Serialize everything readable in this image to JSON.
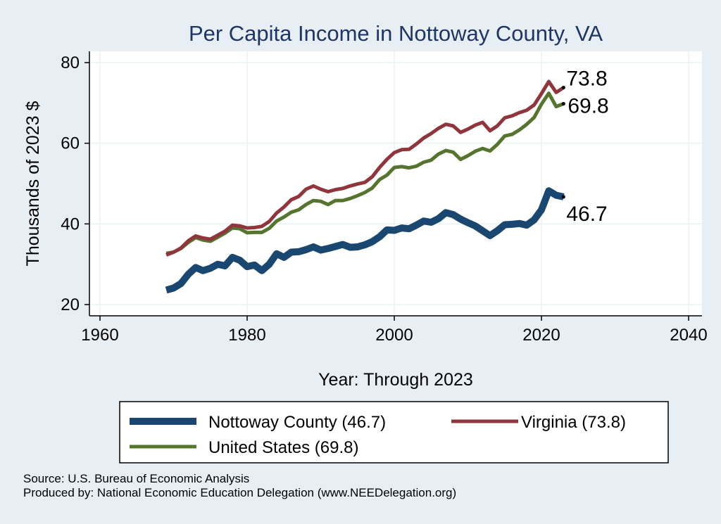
{
  "chart_data": {
    "type": "line",
    "title": "Per Capita Income in Nottoway County, VA",
    "xlabel": "Year: Through 2023",
    "ylabel": "Thousands of 2023 $",
    "xlim": [
      1960,
      2040
    ],
    "ylim": [
      20,
      80
    ],
    "xticks": [
      "1960",
      "1980",
      "2000",
      "2020",
      "2040"
    ],
    "yticks": [
      "20",
      "40",
      "60",
      "80"
    ],
    "grid": true,
    "legend_position": "bottom",
    "series": [
      {
        "name": "Nottoway County (46.7)",
        "color": "#1a476f",
        "end_label": "46.7",
        "x": [
          1969,
          1970,
          1971,
          1972,
          1973,
          1974,
          1975,
          1976,
          1977,
          1978,
          1979,
          1980,
          1981,
          1982,
          1983,
          1984,
          1985,
          1986,
          1987,
          1988,
          1989,
          1990,
          1991,
          1992,
          1993,
          1994,
          1995,
          1996,
          1997,
          1998,
          1999,
          2000,
          2001,
          2002,
          2003,
          2004,
          2005,
          2006,
          2007,
          2008,
          2009,
          2010,
          2011,
          2012,
          2013,
          2014,
          2015,
          2016,
          2017,
          2018,
          2019,
          2020,
          2021,
          2022,
          2023
        ],
        "values": [
          23.6,
          24.1,
          25.2,
          27.5,
          29.2,
          28.4,
          29.0,
          30.0,
          29.6,
          31.7,
          31.0,
          29.4,
          29.8,
          28.4,
          30.0,
          32.6,
          31.7,
          33.0,
          33.1,
          33.6,
          34.3,
          33.5,
          33.9,
          34.4,
          34.9,
          34.2,
          34.3,
          34.8,
          35.6,
          36.8,
          38.5,
          38.4,
          39.0,
          38.8,
          39.7,
          40.7,
          40.4,
          41.3,
          42.8,
          42.3,
          41.2,
          40.3,
          39.5,
          38.3,
          37.1,
          38.3,
          39.8,
          39.9,
          40.1,
          39.7,
          41.0,
          43.5,
          48.2,
          47.1,
          46.7
        ]
      },
      {
        "name": "Virginia (73.8)",
        "color": "#90353b",
        "end_label": "73.8",
        "x": [
          1969,
          1970,
          1971,
          1972,
          1973,
          1974,
          1975,
          1976,
          1977,
          1978,
          1979,
          1980,
          1981,
          1982,
          1983,
          1984,
          1985,
          1986,
          1987,
          1988,
          1989,
          1990,
          1991,
          1992,
          1993,
          1994,
          1995,
          1996,
          1997,
          1998,
          1999,
          2000,
          2001,
          2002,
          2003,
          2004,
          2005,
          2006,
          2007,
          2008,
          2009,
          2010,
          2011,
          2012,
          2013,
          2014,
          2015,
          2016,
          2017,
          2018,
          2019,
          2020,
          2021,
          2022,
          2023
        ],
        "values": [
          32.3,
          33.0,
          34.0,
          35.8,
          37.0,
          36.5,
          36.2,
          37.2,
          38.2,
          39.7,
          39.5,
          39.0,
          39.1,
          39.4,
          40.6,
          42.7,
          44.2,
          46.0,
          46.8,
          48.6,
          49.4,
          48.6,
          48.0,
          48.5,
          48.8,
          49.4,
          49.9,
          50.3,
          51.7,
          54.0,
          56.0,
          57.7,
          58.4,
          58.5,
          59.8,
          61.3,
          62.4,
          63.7,
          64.7,
          64.3,
          62.7,
          63.5,
          64.5,
          65.2,
          63.1,
          64.3,
          66.3,
          66.8,
          67.6,
          68.2,
          69.5,
          72.3,
          75.3,
          72.6,
          73.8
        ]
      },
      {
        "name": "United States (69.8)",
        "color": "#55752f",
        "end_label": "69.8",
        "x": [
          1969,
          1970,
          1971,
          1972,
          1973,
          1974,
          1975,
          1976,
          1977,
          1978,
          1979,
          1980,
          1981,
          1982,
          1983,
          1984,
          1985,
          1986,
          1987,
          1988,
          1989,
          1990,
          1991,
          1992,
          1993,
          1994,
          1995,
          1996,
          1997,
          1998,
          1999,
          2000,
          2001,
          2002,
          2003,
          2004,
          2005,
          2006,
          2007,
          2008,
          2009,
          2010,
          2011,
          2012,
          2013,
          2014,
          2015,
          2016,
          2017,
          2018,
          2019,
          2020,
          2021,
          2022,
          2023
        ],
        "values": [
          32.7,
          33.0,
          33.9,
          35.4,
          36.6,
          36.0,
          35.7,
          36.7,
          37.7,
          39.0,
          38.8,
          37.8,
          37.9,
          37.9,
          38.9,
          40.7,
          41.7,
          42.9,
          43.5,
          44.8,
          45.8,
          45.6,
          44.8,
          45.8,
          45.8,
          46.3,
          47.0,
          47.8,
          48.9,
          51.0,
          52.1,
          54.0,
          54.2,
          53.9,
          54.3,
          55.3,
          55.8,
          57.3,
          58.2,
          57.8,
          56.0,
          56.9,
          58.0,
          58.7,
          58.1,
          59.7,
          61.8,
          62.2,
          63.3,
          64.7,
          66.4,
          69.7,
          72.4,
          69.1,
          69.8
        ]
      }
    ]
  },
  "footer": {
    "source": "Source: U.S. Bureau of Economic Analysis",
    "produced_by": "Produced by: National Economic Education Delegation (www.NEEDelegation.org)"
  }
}
